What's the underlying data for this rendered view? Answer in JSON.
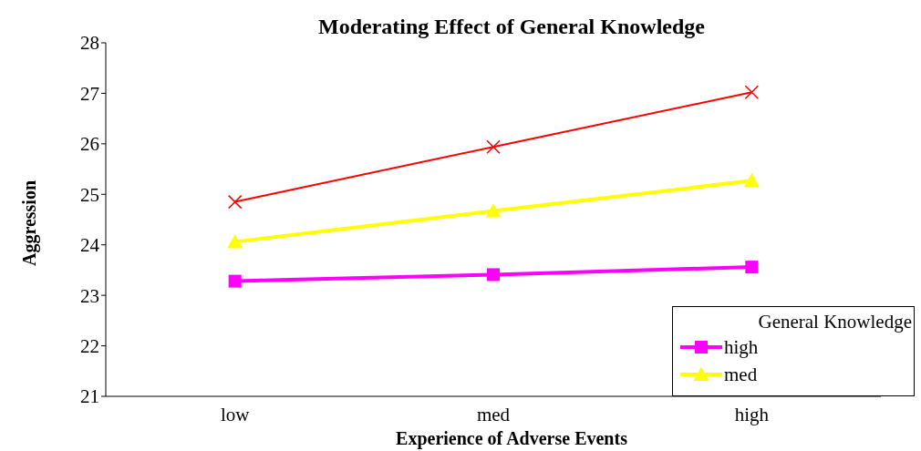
{
  "chart_data": {
    "type": "line",
    "title": "Moderating Effect of General Knowledge",
    "xlabel": "Experience of Adverse Events",
    "ylabel": "Aggression",
    "legend_title": "General Knowledge",
    "categories": [
      "low",
      "med",
      "high"
    ],
    "series": [
      {
        "color": "#ff0000",
        "marker": "cross",
        "values": [
          24.85,
          25.94,
          27.02
        ]
      },
      {
        "name": "med",
        "color": "#ffff00",
        "marker": "triangle",
        "values": [
          24.06,
          24.67,
          25.27
        ]
      },
      {
        "name": "high",
        "color": "#ff00ff",
        "marker": "square",
        "values": [
          23.28,
          23.41,
          23.56
        ]
      }
    ],
    "ylim": [
      21,
      28
    ],
    "yticks": [
      21,
      22,
      23,
      24,
      25,
      26,
      27,
      28
    ],
    "grid": false,
    "legend": "bottom right"
  }
}
